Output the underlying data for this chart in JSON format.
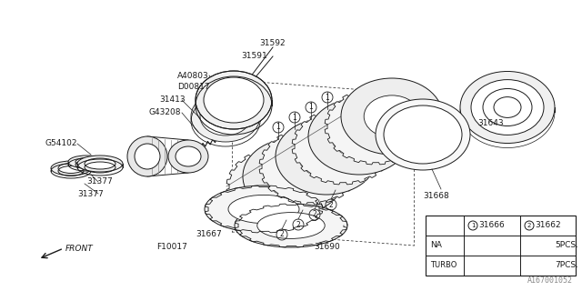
{
  "bg_color": "#ffffff",
  "line_color": "#1a1a1a",
  "fig_width": 6.4,
  "fig_height": 3.2,
  "dpi": 100,
  "table": {
    "col1_header": "31666",
    "col2_header": "31662",
    "na_val": "5PCS.",
    "turbo_val": "7PCS."
  },
  "watermark": "A167001052"
}
